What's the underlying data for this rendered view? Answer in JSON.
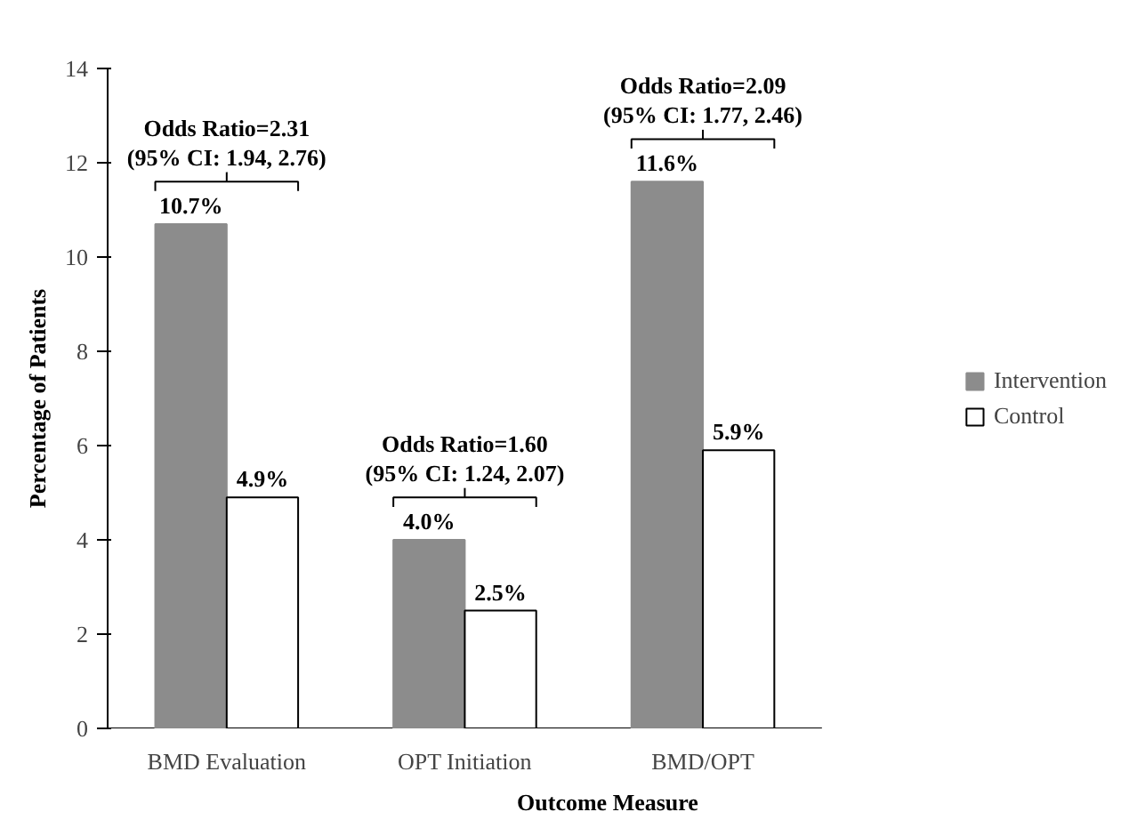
{
  "chart_data": {
    "type": "bar",
    "xlabel": "Outcome Measure",
    "ylabel": "Percentage of Patients",
    "categories": [
      "BMD Evaluation",
      "OPT Initiation",
      "BMD/OPT"
    ],
    "series": [
      {
        "name": "Intervention",
        "color": "#8c8c8c",
        "values": [
          10.7,
          4.0,
          11.6
        ],
        "value_labels": [
          "10.7%",
          "4.0%",
          "11.6%"
        ]
      },
      {
        "name": "Control",
        "color": "#ffffff",
        "values": [
          4.9,
          2.5,
          5.9
        ],
        "value_labels": [
          "4.9%",
          "2.5%",
          "5.9%"
        ]
      }
    ],
    "ylim": [
      0,
      14
    ],
    "yticks": [
      0,
      2,
      4,
      6,
      8,
      10,
      12,
      14
    ],
    "grid": false,
    "legend": "right",
    "annotations": [
      "Odds Ratio=2.31\n(95% CI: 1.94, 2.76)",
      "Odds Ratio=1.60\n(95% CI: 1.24, 2.07)",
      "Odds Ratio=2.09\n(95% CI: 1.77, 2.46)"
    ]
  }
}
